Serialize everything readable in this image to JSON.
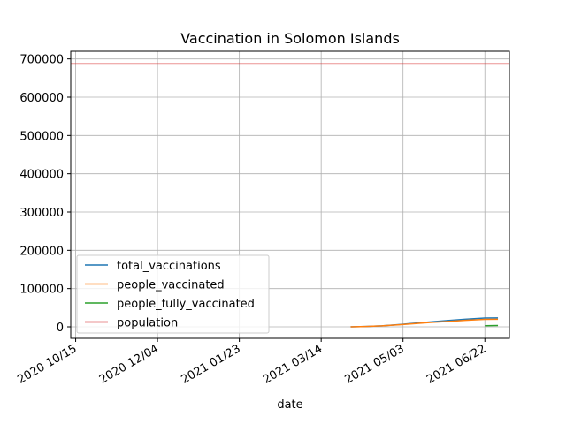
{
  "chart_data": {
    "type": "line",
    "title": "Vaccination in Solomon Islands",
    "xlabel": "date",
    "ylabel": "",
    "x_type": "date",
    "xlim": [
      "2020-10-12",
      "2021-07-07"
    ],
    "ylim": [
      -30000,
      720000
    ],
    "x_ticks": [
      {
        "date": "2020-10-15",
        "label": "2020 10/15"
      },
      {
        "date": "2020-12-04",
        "label": "2020 12/04"
      },
      {
        "date": "2021-01-23",
        "label": "2021 01/23"
      },
      {
        "date": "2021-03-14",
        "label": "2021 03/14"
      },
      {
        "date": "2021-05-03",
        "label": "2021 05/03"
      },
      {
        "date": "2021-06-22",
        "label": "2021 06/22"
      }
    ],
    "y_ticks": [
      0,
      100000,
      200000,
      300000,
      400000,
      500000,
      600000,
      700000
    ],
    "grid": true,
    "legend_position": "lower-left",
    "series": [
      {
        "name": "total_vaccinations",
        "color": "#1f77b4",
        "points": [
          [
            "2021-04-01",
            0
          ],
          [
            "2021-04-10",
            1000
          ],
          [
            "2021-04-20",
            2500
          ],
          [
            "2021-05-01",
            6000
          ],
          [
            "2021-05-10",
            9500
          ],
          [
            "2021-05-20",
            13000
          ],
          [
            "2021-06-01",
            17000
          ],
          [
            "2021-06-10",
            20000
          ],
          [
            "2021-06-22",
            23000
          ],
          [
            "2021-06-30",
            23500
          ]
        ]
      },
      {
        "name": "people_vaccinated",
        "color": "#ff7f0e",
        "points": [
          [
            "2021-04-01",
            0
          ],
          [
            "2021-04-10",
            1000
          ],
          [
            "2021-04-20",
            2500
          ],
          [
            "2021-05-01",
            5500
          ],
          [
            "2021-05-10",
            8500
          ],
          [
            "2021-05-20",
            11500
          ],
          [
            "2021-06-01",
            14500
          ],
          [
            "2021-06-10",
            17000
          ],
          [
            "2021-06-22",
            19500
          ],
          [
            "2021-06-30",
            20000
          ]
        ]
      },
      {
        "name": "people_fully_vaccinated",
        "color": "#2ca02c",
        "points": [
          [
            "2021-06-22",
            3000
          ],
          [
            "2021-06-30",
            3500
          ]
        ]
      },
      {
        "name": "population",
        "color": "#d62728",
        "constant": 686878
      }
    ]
  }
}
